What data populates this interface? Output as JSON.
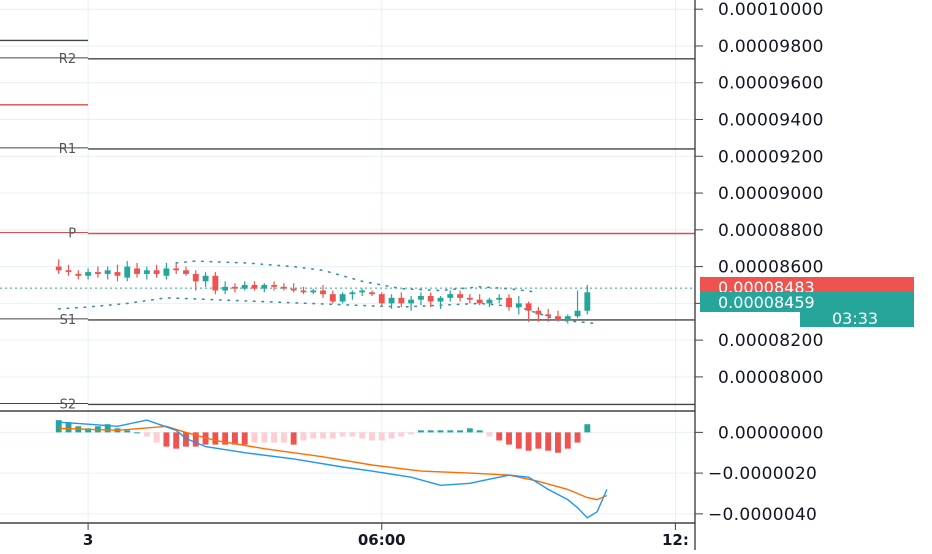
{
  "chart_data": {
    "type": "candlestick",
    "symbol_pane": {
      "y_axis_labels": [
        "0.00010000",
        "0.00009800",
        "0.00009600",
        "0.00009400",
        "0.00009200",
        "0.00009000",
        "0.00008800",
        "0.00008600",
        "0.00008400",
        "0.00008200",
        "0.00008000"
      ],
      "y_ticks": [
        0.0001,
        9.8e-05,
        9.6e-05,
        9.4e-05,
        9.2e-05,
        9e-05,
        8.8e-05,
        8.6e-05,
        8.4e-05,
        8.2e-05,
        8e-05
      ],
      "ylim": [
        7.82e-05,
        0.0001005
      ],
      "pivots": [
        {
          "name": "R2",
          "value": 9.73e-05,
          "color": "#444444"
        },
        {
          "name": "R1",
          "value": 9.24e-05,
          "color": "#444444"
        },
        {
          "name": "P",
          "value": 8.78e-05,
          "color": "#e04a4a"
        },
        {
          "name": "S1",
          "value": 8.31e-05,
          "color": "#444444"
        },
        {
          "name": "S2",
          "value": 7.85e-05,
          "color": "#444444"
        }
      ],
      "extra_lines": [
        {
          "value": 9.83e-05,
          "x_end": 0.0,
          "color": "#444444"
        },
        {
          "value": 9.48e-05,
          "x_end": 0.0,
          "color": "#e04a4a"
        }
      ],
      "last_price": {
        "value": "0.00008483",
        "color": "#ef5350"
      },
      "bid_price": {
        "value": "0.00008459",
        "color": "#26a69a"
      },
      "countdown": "03:33",
      "candles": [
        [
          1,
          8.6e-05,
          8.64e-05,
          8.56e-05,
          8.58e-05
        ],
        [
          2,
          8.58e-05,
          8.61e-05,
          8.55e-05,
          8.57e-05
        ],
        [
          3,
          8.56e-05,
          8.58e-05,
          8.53e-05,
          8.55e-05
        ],
        [
          4,
          8.55e-05,
          8.59e-05,
          8.53e-05,
          8.57e-05
        ],
        [
          5,
          8.57e-05,
          8.6e-05,
          8.54e-05,
          8.56e-05
        ],
        [
          6,
          8.56e-05,
          8.6e-05,
          8.53e-05,
          8.58e-05
        ],
        [
          7,
          8.57e-05,
          8.61e-05,
          8.52e-05,
          8.55e-05
        ],
        [
          8,
          8.54e-05,
          8.63e-05,
          8.52e-05,
          8.6e-05
        ],
        [
          9,
          8.59e-05,
          8.62e-05,
          8.54e-05,
          8.56e-05
        ],
        [
          10,
          8.56e-05,
          8.6e-05,
          8.53e-05,
          8.58e-05
        ],
        [
          11,
          8.58e-05,
          8.61e-05,
          8.54e-05,
          8.56e-05
        ],
        [
          12,
          8.55e-05,
          8.62e-05,
          8.53e-05,
          8.59e-05
        ],
        [
          13,
          8.59e-05,
          8.62e-05,
          8.56e-05,
          8.58e-05
        ],
        [
          14,
          8.58e-05,
          8.6e-05,
          8.55e-05,
          8.56e-05
        ],
        [
          15,
          8.56e-05,
          8.58e-05,
          8.47e-05,
          8.52e-05
        ],
        [
          16,
          8.52e-05,
          8.57e-05,
          8.49e-05,
          8.55e-05
        ],
        [
          17,
          8.55e-05,
          8.57e-05,
          8.45e-05,
          8.47e-05
        ],
        [
          18,
          8.47e-05,
          8.52e-05,
          8.45e-05,
          8.49e-05
        ],
        [
          19,
          8.49e-05,
          8.51e-05,
          8.46e-05,
          8.48e-05
        ],
        [
          20,
          8.48e-05,
          8.52e-05,
          8.47e-05,
          8.5e-05
        ],
        [
          21,
          8.5e-05,
          8.52e-05,
          8.47e-05,
          8.48e-05
        ],
        [
          22,
          8.48e-05,
          8.51e-05,
          8.46e-05,
          8.5e-05
        ],
        [
          23,
          8.5e-05,
          8.52e-05,
          8.47e-05,
          8.49e-05
        ],
        [
          24,
          8.49e-05,
          8.51e-05,
          8.47e-05,
          8.48e-05
        ],
        [
          25,
          8.48e-05,
          8.51e-05,
          8.46e-05,
          8.47e-05
        ],
        [
          26,
          8.47e-05,
          8.49e-05,
          8.45e-05,
          8.46e-05
        ],
        [
          27,
          8.46e-05,
          8.48e-05,
          8.45e-05,
          8.47e-05
        ],
        [
          28,
          8.47e-05,
          8.5e-05,
          8.43e-05,
          8.45e-05
        ],
        [
          29,
          8.45e-05,
          8.47e-05,
          8.4e-05,
          8.41e-05
        ],
        [
          30,
          8.41e-05,
          8.46e-05,
          8.4e-05,
          8.45e-05
        ],
        [
          31,
          8.45e-05,
          8.47e-05,
          8.42e-05,
          8.46e-05
        ],
        [
          32,
          8.46e-05,
          8.48e-05,
          8.44e-05,
          8.47e-05
        ],
        [
          33,
          8.46e-05,
          8.47e-05,
          8.44e-05,
          8.45e-05
        ],
        [
          34,
          8.45e-05,
          8.46e-05,
          8.38e-05,
          8.4e-05
        ],
        [
          35,
          8.4e-05,
          8.45e-05,
          8.37e-05,
          8.43e-05
        ],
        [
          36,
          8.43e-05,
          8.46e-05,
          8.38e-05,
          8.4e-05
        ],
        [
          37,
          8.4e-05,
          8.44e-05,
          8.36e-05,
          8.42e-05
        ],
        [
          38,
          8.42e-05,
          8.46e-05,
          8.39e-05,
          8.44e-05
        ],
        [
          39,
          8.44e-05,
          8.46e-05,
          8.38e-05,
          8.41e-05
        ],
        [
          40,
          8.41e-05,
          8.44e-05,
          8.37e-05,
          8.43e-05
        ],
        [
          41,
          8.43e-05,
          8.47e-05,
          8.41e-05,
          8.45e-05
        ],
        [
          42,
          8.45e-05,
          8.47e-05,
          8.41e-05,
          8.43e-05
        ],
        [
          43,
          8.43e-05,
          8.45e-05,
          8.4e-05,
          8.42e-05
        ],
        [
          44,
          8.42e-05,
          8.45e-05,
          8.39e-05,
          8.4e-05
        ],
        [
          45,
          8.4e-05,
          8.43e-05,
          8.38e-05,
          8.42e-05
        ],
        [
          46,
          8.42e-05,
          8.45e-05,
          8.4e-05,
          8.43e-05
        ],
        [
          47,
          8.43e-05,
          8.45e-05,
          8.36e-05,
          8.38e-05
        ],
        [
          48,
          8.38e-05,
          8.44e-05,
          8.34e-05,
          8.4e-05
        ],
        [
          49,
          8.4e-05,
          8.41e-05,
          8.3e-05,
          8.36e-05
        ],
        [
          50,
          8.36e-05,
          8.38e-05,
          8.3e-05,
          8.34e-05
        ],
        [
          51,
          8.34e-05,
          8.37e-05,
          8.3e-05,
          8.33e-05
        ],
        [
          52,
          8.33e-05,
          8.36e-05,
          8.3e-05,
          8.31e-05
        ],
        [
          53,
          8.31e-05,
          8.34e-05,
          8.29e-05,
          8.33e-05
        ],
        [
          54,
          8.33e-05,
          8.47e-05,
          8.32e-05,
          8.36e-05
        ],
        [
          55,
          8.36e-05,
          8.5e-05,
          8.34e-05,
          8.46e-05
        ]
      ],
      "envelope_upper": [
        [
          13,
          8.62e-05
        ],
        [
          15,
          8.63e-05
        ],
        [
          20,
          8.62e-05
        ],
        [
          25,
          8.6e-05
        ],
        [
          28,
          8.58e-05
        ],
        [
          32,
          8.52e-05
        ],
        [
          36,
          8.48e-05
        ],
        [
          40,
          8.47e-05
        ],
        [
          44,
          8.49e-05
        ],
        [
          47,
          8.48e-05
        ],
        [
          50,
          8.46e-05
        ]
      ],
      "envelope_lower": [
        [
          1,
          8.37e-05
        ],
        [
          4,
          8.38e-05
        ],
        [
          8,
          8.4e-05
        ],
        [
          12,
          8.43e-05
        ],
        [
          36,
          8.38e-05
        ],
        [
          40,
          8.39e-05
        ],
        [
          44,
          8.4e-05
        ],
        [
          48,
          8.38e-05
        ],
        [
          52,
          8.31e-05
        ],
        [
          56,
          8.29e-05
        ]
      ]
    },
    "oscillator_pane": {
      "y_axis_labels": [
        "0.00000000",
        "−0.0000020",
        "−0.0000040"
      ],
      "y_ticks": [
        0.0,
        -2e-06,
        -4e-06
      ],
      "ylim": [
        -4.4e-06,
        1e-06
      ],
      "histogram": [
        0.6,
        0.5,
        0.3,
        0.2,
        0.3,
        0.4,
        0.2,
        0.1,
        0.0,
        -0.2,
        -0.5,
        -0.7,
        -0.8,
        -0.7,
        -0.7,
        -0.6,
        -0.6,
        -0.6,
        -0.6,
        -0.6,
        -0.5,
        -0.5,
        -0.5,
        -0.5,
        -0.6,
        -0.4,
        -0.3,
        -0.3,
        -0.3,
        -0.2,
        -0.2,
        -0.3,
        -0.4,
        -0.4,
        -0.3,
        -0.2,
        -0.1,
        0.1,
        0.1,
        0.1,
        0.1,
        0.1,
        0.2,
        0.1,
        -0.2,
        -0.4,
        -0.6,
        -0.8,
        -0.9,
        -0.8,
        -0.9,
        -1.0,
        -0.8,
        -0.5,
        0.4
      ],
      "macd": [
        [
          1,
          5e-07
        ],
        [
          4,
          4e-07
        ],
        [
          7,
          3e-07
        ],
        [
          10,
          6e-07
        ],
        [
          13,
          1e-07
        ],
        [
          14,
          -3e-07
        ],
        [
          16,
          -7e-07
        ],
        [
          20,
          -1e-06
        ],
        [
          25,
          -1.3e-06
        ],
        [
          30,
          -1.7e-06
        ],
        [
          33,
          -1.9e-06
        ],
        [
          37,
          -2.2e-06
        ],
        [
          40,
          -2.6e-06
        ],
        [
          43,
          -2.5e-06
        ],
        [
          45,
          -2.3e-06
        ],
        [
          47,
          -2.1e-06
        ],
        [
          49,
          -2.2e-06
        ],
        [
          51,
          -2.8e-06
        ],
        [
          53,
          -3.3e-06
        ],
        [
          54,
          -3.7e-06
        ],
        [
          55,
          -4.2e-06
        ],
        [
          56,
          -3.9e-06
        ],
        [
          57,
          -2.8e-06
        ]
      ],
      "signal": [
        [
          1,
          2e-07
        ],
        [
          7,
          1e-07
        ],
        [
          12,
          3e-07
        ],
        [
          14,
          0.0
        ],
        [
          17,
          -4e-07
        ],
        [
          22,
          -8e-07
        ],
        [
          28,
          -1.2e-06
        ],
        [
          33,
          -1.6e-06
        ],
        [
          38,
          -1.9e-06
        ],
        [
          43,
          -2e-06
        ],
        [
          47,
          -2.1e-06
        ],
        [
          50,
          -2.4e-06
        ],
        [
          53,
          -2.8e-06
        ],
        [
          55,
          -3.2e-06
        ],
        [
          56,
          -3.3e-06
        ],
        [
          57,
          -3.1e-06
        ]
      ],
      "macd_color": "#2196f3",
      "signal_color": "#ff6d00"
    },
    "x_axis": {
      "labels": [
        {
          "text": "3",
          "index": 4
        },
        {
          "text": "06:00",
          "index": 34
        },
        {
          "text": "12:",
          "index": 64
        }
      ],
      "index_range": [
        -5,
        66
      ]
    },
    "colors": {
      "up": "#26a69a",
      "down": "#ef5350",
      "hist_pos": "#26a69a",
      "hist_neg_light": "#ffcdd2",
      "hist_neg": "#ef5350",
      "grid": "#e6f0f6"
    }
  }
}
